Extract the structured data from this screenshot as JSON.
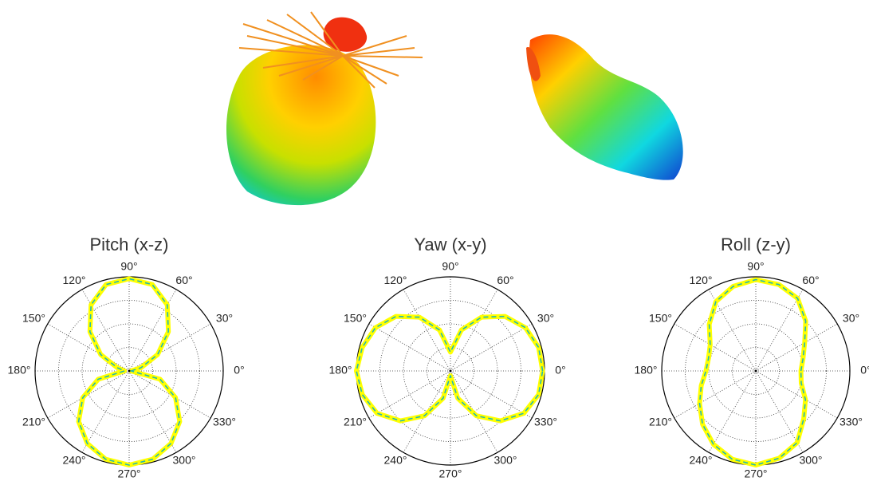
{
  "chart_data": [
    {
      "type": "polar",
      "title": "Pitch (x-z)",
      "theta": [
        0,
        15,
        30,
        45,
        60,
        75,
        90,
        105,
        120,
        135,
        150,
        165,
        180,
        195,
        210,
        225,
        240,
        255,
        270,
        285,
        300,
        315,
        330,
        345
      ],
      "series": [
        {
          "color": "#ffff00",
          "linestyle": "thick",
          "values": [
            0.02,
            0.13,
            0.35,
            0.59,
            0.81,
            0.95,
            0.98,
            0.95,
            0.81,
            0.59,
            0.35,
            0.13,
            0.05,
            0.34,
            0.57,
            0.76,
            0.89,
            0.97,
            1.0,
            0.97,
            0.89,
            0.76,
            0.57,
            0.34
          ]
        },
        {
          "color": "#22b8b0",
          "linestyle": "dashed",
          "values": [
            0.02,
            0.13,
            0.35,
            0.59,
            0.81,
            0.95,
            0.98,
            0.95,
            0.81,
            0.59,
            0.35,
            0.13,
            0.05,
            0.34,
            0.57,
            0.76,
            0.89,
            0.97,
            1.0,
            0.97,
            0.89,
            0.76,
            0.57,
            0.34
          ]
        }
      ],
      "rlim": [
        0,
        1
      ],
      "rticks": [
        0.25,
        0.5,
        0.75
      ],
      "thetaticks": [
        {
          "value": 0,
          "label": "0°"
        },
        {
          "value": 30,
          "label": "30°"
        },
        {
          "value": 60,
          "label": "60°"
        },
        {
          "value": 90,
          "label": "90°"
        },
        {
          "value": 120,
          "label": "120°"
        },
        {
          "value": 150,
          "label": "150°"
        },
        {
          "value": 180,
          "label": "180°"
        },
        {
          "value": 210,
          "label": "210°"
        },
        {
          "value": 240,
          "label": "240°"
        },
        {
          "value": 270,
          "label": "270°"
        },
        {
          "value": 300,
          "label": "300°"
        },
        {
          "value": 330,
          "label": "330°"
        }
      ],
      "grid": true
    },
    {
      "type": "polar",
      "title": "Yaw (x-y)",
      "theta": [
        0,
        15,
        30,
        45,
        60,
        75,
        90,
        105,
        120,
        135,
        150,
        165,
        180,
        195,
        210,
        225,
        240,
        255,
        270,
        285,
        300,
        315,
        330,
        345
      ],
      "series": [
        {
          "color": "#ffff00",
          "linestyle": "thick",
          "values": [
            0.98,
            0.97,
            0.92,
            0.82,
            0.66,
            0.45,
            0.2,
            0.45,
            0.66,
            0.82,
            0.92,
            0.97,
            1.0,
            0.97,
            0.9,
            0.75,
            0.55,
            0.3,
            0.05,
            0.3,
            0.55,
            0.75,
            0.9,
            0.97
          ]
        },
        {
          "color": "#22b8b0",
          "linestyle": "dashed",
          "values": [
            0.98,
            0.97,
            0.92,
            0.82,
            0.66,
            0.45,
            0.2,
            0.45,
            0.66,
            0.82,
            0.92,
            0.97,
            1.0,
            0.97,
            0.9,
            0.75,
            0.55,
            0.3,
            0.05,
            0.3,
            0.55,
            0.75,
            0.9,
            0.97
          ]
        }
      ],
      "rlim": [
        0,
        1
      ],
      "rticks": [
        0.25,
        0.5,
        0.75
      ],
      "thetaticks": [
        {
          "value": 0,
          "label": "0°"
        },
        {
          "value": 30,
          "label": "30°"
        },
        {
          "value": 60,
          "label": "60°"
        },
        {
          "value": 90,
          "label": "90°"
        },
        {
          "value": 120,
          "label": "120°"
        },
        {
          "value": 150,
          "label": "150°"
        },
        {
          "value": 180,
          "label": "180°"
        },
        {
          "value": 210,
          "label": "210°"
        },
        {
          "value": 240,
          "label": "240°"
        },
        {
          "value": 270,
          "label": "270°"
        },
        {
          "value": 300,
          "label": "300°"
        },
        {
          "value": 330,
          "label": "330°"
        }
      ],
      "grid": true
    },
    {
      "type": "polar",
      "title": "Roll (z-y)",
      "theta": [
        0,
        15,
        30,
        45,
        60,
        75,
        90,
        105,
        120,
        135,
        150,
        165,
        180,
        195,
        210,
        225,
        240,
        255,
        270,
        285,
        300,
        315,
        330,
        345
      ],
      "series": [
        {
          "color": "#ffff00",
          "linestyle": "thick",
          "values": [
            0.48,
            0.52,
            0.6,
            0.75,
            0.89,
            0.95,
            0.97,
            0.93,
            0.85,
            0.7,
            0.56,
            0.52,
            0.53,
            0.6,
            0.69,
            0.8,
            0.9,
            0.97,
            1.0,
            0.96,
            0.88,
            0.72,
            0.61,
            0.5
          ]
        },
        {
          "color": "#22b8b0",
          "linestyle": "dashed",
          "values": [
            0.48,
            0.52,
            0.6,
            0.75,
            0.89,
            0.95,
            0.97,
            0.93,
            0.85,
            0.7,
            0.56,
            0.52,
            0.53,
            0.6,
            0.69,
            0.8,
            0.9,
            0.97,
            1.0,
            0.96,
            0.88,
            0.72,
            0.61,
            0.5
          ]
        }
      ],
      "rlim": [
        0,
        1
      ],
      "rticks": [
        0.25,
        0.5,
        0.75
      ],
      "thetaticks": [
        {
          "value": 0,
          "label": "0°"
        },
        {
          "value": 30,
          "label": "30°"
        },
        {
          "value": 60,
          "label": "60°"
        },
        {
          "value": 90,
          "label": "90°"
        },
        {
          "value": 120,
          "label": "120°"
        },
        {
          "value": 150,
          "label": "150°"
        },
        {
          "value": 180,
          "label": "180°"
        },
        {
          "value": 210,
          "label": "210°"
        },
        {
          "value": 240,
          "label": "240°"
        },
        {
          "value": 270,
          "label": "270°"
        },
        {
          "value": 300,
          "label": "300°"
        },
        {
          "value": 330,
          "label": "330°"
        }
      ],
      "grid": true
    }
  ]
}
